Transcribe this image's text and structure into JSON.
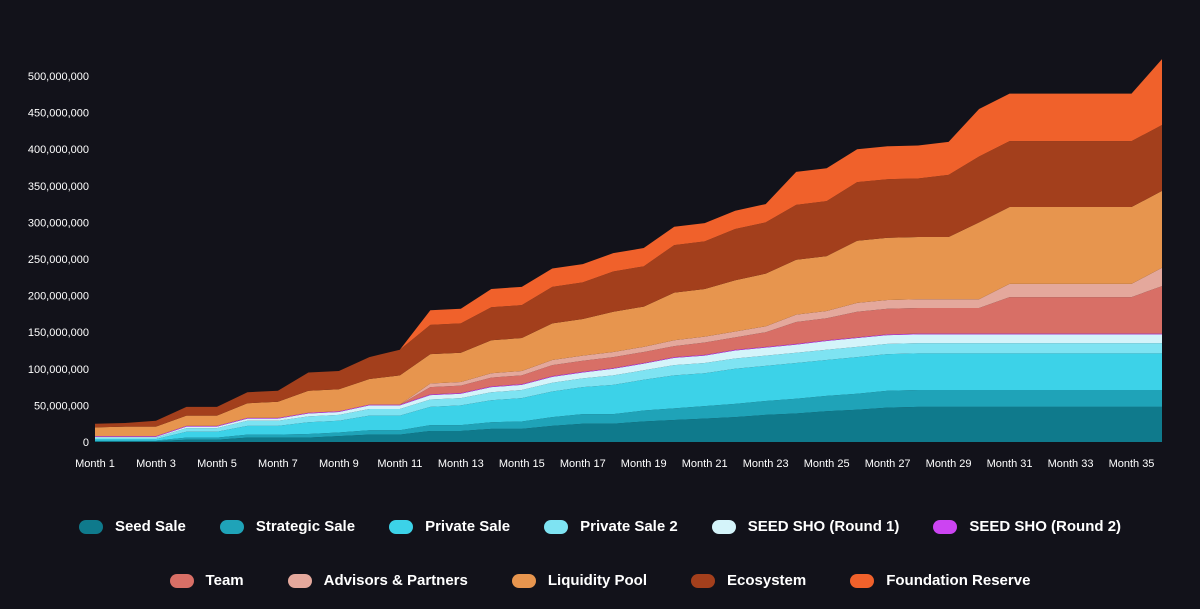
{
  "chart_data": {
    "type": "area",
    "stacked": true,
    "title": "",
    "xlabel": "",
    "ylabel": "",
    "ylim": [
      0,
      500000000
    ],
    "yticks": [
      0,
      50000000,
      100000000,
      150000000,
      200000000,
      250000000,
      300000000,
      350000000,
      400000000,
      450000000,
      500000000
    ],
    "ytick_labels": [
      "0",
      "50,000,000",
      "100,000,000",
      "150,000,000",
      "200,000,000",
      "250,000,000",
      "300,000,000",
      "350,000,000",
      "400,000,000",
      "450,000,000",
      "500,000,000"
    ],
    "categories": [
      "Month 1",
      "Month 2",
      "Month 3",
      "Month 4",
      "Month 5",
      "Month 6",
      "Month 7",
      "Month 8",
      "Month 9",
      "Month 10",
      "Month 11",
      "Month 12",
      "Month 13",
      "Month 14",
      "Month 15",
      "Month 16",
      "Month 17",
      "Month 18",
      "Month 19",
      "Month 20",
      "Month 21",
      "Month 22",
      "Month 23",
      "Month 24",
      "Month 25",
      "Month 26",
      "Month 27",
      "Month 28",
      "Month 29",
      "Month 30",
      "Month 31",
      "Month 32",
      "Month 33",
      "Month 34",
      "Month 35",
      "Month 36"
    ],
    "xtick_labels": [
      "Month 1",
      "Month 3",
      "Month 5",
      "Month 7",
      "Month 9",
      "Month 11",
      "Month 13",
      "Month 15",
      "Month 17",
      "Month 19",
      "Month 21",
      "Month 23",
      "Month 25",
      "Month 27",
      "Month 29",
      "Month 31",
      "Month 33",
      "Month 35"
    ],
    "series": [
      {
        "name": "Seed Sale",
        "color": "#0f7a8c",
        "values": [
          1000000,
          1000000,
          1000000,
          3000000,
          3000000,
          6000000,
          6000000,
          6000000,
          8000000,
          10000000,
          10000000,
          15000000,
          15000000,
          18000000,
          18000000,
          22000000,
          25000000,
          25000000,
          28000000,
          30000000,
          32000000,
          34000000,
          37000000,
          39000000,
          42000000,
          44000000,
          47000000,
          48000000,
          48000000,
          48000000,
          48000000,
          48000000,
          48000000,
          48000000,
          48000000,
          48000000
        ]
      },
      {
        "name": "Strategic Sale",
        "color": "#1fa3b8",
        "values": [
          1000000,
          1000000,
          1000000,
          3000000,
          3000000,
          4000000,
          4000000,
          5000000,
          5000000,
          6000000,
          6000000,
          8000000,
          8000000,
          9000000,
          10000000,
          12000000,
          13000000,
          13000000,
          15000000,
          16000000,
          17000000,
          18000000,
          19000000,
          20000000,
          21000000,
          22000000,
          23000000,
          23000000,
          23000000,
          23000000,
          23000000,
          23000000,
          23000000,
          23000000,
          23000000,
          23000000
        ]
      },
      {
        "name": "Private Sale",
        "color": "#3cd2e8",
        "values": [
          2000000,
          2000000,
          2000000,
          8000000,
          8000000,
          12000000,
          12000000,
          16000000,
          16000000,
          20000000,
          20000000,
          25000000,
          27000000,
          30000000,
          32000000,
          35000000,
          37000000,
          40000000,
          42000000,
          45000000,
          45000000,
          48000000,
          48000000,
          49000000,
          49000000,
          50000000,
          50000000,
          50000000,
          50000000,
          50000000,
          50000000,
          50000000,
          50000000,
          50000000,
          50000000,
          50000000
        ]
      },
      {
        "name": "Private Sale 2",
        "color": "#7ee3f2",
        "values": [
          2000000,
          2000000,
          2000000,
          5000000,
          5000000,
          7000000,
          7000000,
          8000000,
          8000000,
          9000000,
          9000000,
          10000000,
          10000000,
          11000000,
          11000000,
          12000000,
          12000000,
          13000000,
          13000000,
          14000000,
          14000000,
          14000000,
          14000000,
          14000000,
          14000000,
          14000000,
          14000000,
          14000000,
          14000000,
          14000000,
          14000000,
          14000000,
          14000000,
          14000000,
          14000000,
          14000000
        ]
      },
      {
        "name": "SEED SHO (Round 1)",
        "color": "#d4f4fa",
        "values": [
          1000000,
          1000000,
          1000000,
          2000000,
          2000000,
          3000000,
          3000000,
          4000000,
          4000000,
          5000000,
          5000000,
          6000000,
          6000000,
          7000000,
          7000000,
          8000000,
          8000000,
          9000000,
          9000000,
          10000000,
          10000000,
          11000000,
          11000000,
          11000000,
          12000000,
          12000000,
          12000000,
          12000000,
          12000000,
          12000000,
          12000000,
          12000000,
          12000000,
          12000000,
          12000000,
          12000000
        ]
      },
      {
        "name": "SEED SHO (Round 2)",
        "color": "#cc44f2",
        "values": [
          1000000,
          1000000,
          1000000,
          1000000,
          1000000,
          1000000,
          1000000,
          1000000,
          1000000,
          1000000,
          1000000,
          1000000,
          1000000,
          1000000,
          1000000,
          1000000,
          1000000,
          1000000,
          1000000,
          1000000,
          1000000,
          1000000,
          1000000,
          1000000,
          1000000,
          1000000,
          1000000,
          1000000,
          1000000,
          1000000,
          1000000,
          1000000,
          1000000,
          1000000,
          1000000,
          1000000
        ]
      },
      {
        "name": "Team",
        "color": "#d86f66",
        "values": [
          0,
          0,
          0,
          0,
          0,
          0,
          0,
          0,
          0,
          0,
          0,
          10000000,
          10000000,
          12000000,
          12000000,
          15000000,
          15000000,
          15000000,
          15000000,
          15000000,
          17000000,
          17000000,
          20000000,
          30000000,
          30000000,
          35000000,
          35000000,
          35000000,
          35000000,
          35000000,
          50000000,
          50000000,
          50000000,
          50000000,
          50000000,
          65000000
        ]
      },
      {
        "name": "Advisors & Partners",
        "color": "#e4a89c",
        "values": [
          0,
          0,
          0,
          0,
          0,
          0,
          0,
          0,
          0,
          0,
          0,
          5000000,
          5000000,
          6000000,
          6000000,
          7000000,
          7000000,
          7000000,
          7000000,
          8000000,
          8000000,
          8000000,
          8000000,
          10000000,
          10000000,
          12000000,
          12000000,
          12000000,
          12000000,
          12000000,
          18000000,
          18000000,
          18000000,
          18000000,
          18000000,
          25000000
        ]
      },
      {
        "name": "Liquidity Pool",
        "color": "#e7954e",
        "values": [
          12000000,
          13000000,
          13000000,
          14000000,
          14000000,
          20000000,
          22000000,
          30000000,
          30000000,
          35000000,
          40000000,
          40000000,
          40000000,
          45000000,
          45000000,
          50000000,
          50000000,
          55000000,
          55000000,
          65000000,
          65000000,
          70000000,
          72000000,
          75000000,
          75000000,
          85000000,
          85000000,
          85000000,
          85000000,
          105000000,
          105000000,
          105000000,
          105000000,
          105000000,
          105000000,
          105000000
        ]
      },
      {
        "name": "Ecosystem",
        "color": "#a33f1c",
        "values": [
          5000000,
          5000000,
          8000000,
          12000000,
          12000000,
          15000000,
          15000000,
          25000000,
          25000000,
          30000000,
          35000000,
          40000000,
          40000000,
          45000000,
          45000000,
          50000000,
          50000000,
          55000000,
          55000000,
          65000000,
          65000000,
          70000000,
          70000000,
          75000000,
          75000000,
          80000000,
          80000000,
          80000000,
          85000000,
          90000000,
          90000000,
          90000000,
          90000000,
          90000000,
          90000000,
          90000000
        ]
      },
      {
        "name": "Foundation Reserve",
        "color": "#f0612b",
        "values": [
          0,
          0,
          0,
          0,
          0,
          0,
          0,
          0,
          0,
          0,
          0,
          20000000,
          20000000,
          25000000,
          25000000,
          25000000,
          25000000,
          25000000,
          25000000,
          25000000,
          25000000,
          25000000,
          25000000,
          45000000,
          45000000,
          45000000,
          45000000,
          45000000,
          45000000,
          65000000,
          65000000,
          65000000,
          65000000,
          65000000,
          65000000,
          90000000
        ]
      }
    ]
  },
  "legend": {
    "row1": [
      {
        "label": "Seed Sale",
        "color": "#0f7a8c"
      },
      {
        "label": "Strategic Sale",
        "color": "#1fa3b8"
      },
      {
        "label": "Private Sale",
        "color": "#3cd2e8"
      },
      {
        "label": "Private Sale 2",
        "color": "#7ee3f2"
      },
      {
        "label": "SEED SHO (Round 1)",
        "color": "#d4f4fa"
      },
      {
        "label": "SEED SHO (Round 2)",
        "color": "#cc44f2"
      }
    ],
    "row2": [
      {
        "label": "Team",
        "color": "#d86f66"
      },
      {
        "label": "Advisors & Partners",
        "color": "#e4a89c"
      },
      {
        "label": "Liquidity Pool",
        "color": "#e7954e"
      },
      {
        "label": "Ecosystem",
        "color": "#a33f1c"
      },
      {
        "label": "Foundation Reserve",
        "color": "#f0612b"
      }
    ]
  }
}
